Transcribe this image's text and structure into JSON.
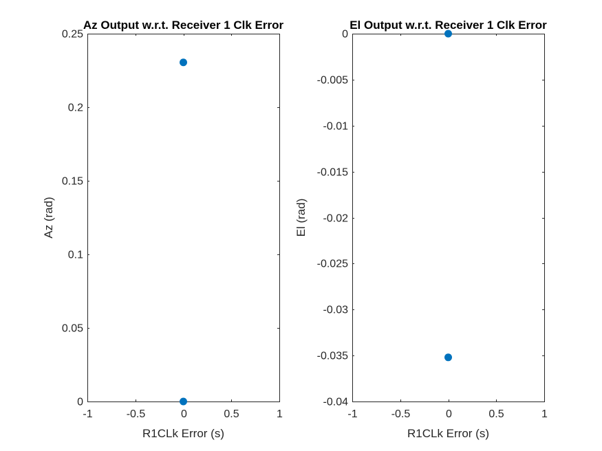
{
  "chart_data": [
    {
      "type": "scatter",
      "title": "Az Output w.r.t. Receiver 1 Clk Error",
      "xlabel": "R1CLk Error (s)",
      "ylabel": "Az (rad)",
      "xlim": [
        -1,
        1
      ],
      "ylim": [
        0,
        0.25
      ],
      "xticks": [
        -1,
        -0.5,
        0,
        0.5,
        1
      ],
      "xtick_labels": [
        "-1",
        "-0.5",
        "0",
        "0.5",
        "1"
      ],
      "yticks": [
        0,
        0.05,
        0.1,
        0.15,
        0.2,
        0.25
      ],
      "ytick_labels": [
        "0",
        "0.05",
        "0.1",
        "0.15",
        "0.2",
        "0.25"
      ],
      "grid": false,
      "marker_color": "#0072BD",
      "points": [
        {
          "x": 0,
          "y": 0.2305
        },
        {
          "x": 0,
          "y": 0
        }
      ]
    },
    {
      "type": "scatter",
      "title": "El Output w.r.t. Receiver 1 Clk Error",
      "xlabel": "R1CLk Error (s)",
      "ylabel": "El (rad)",
      "xlim": [
        -1,
        1
      ],
      "ylim": [
        -0.04,
        0
      ],
      "xticks": [
        -1,
        -0.5,
        0,
        0.5,
        1
      ],
      "xtick_labels": [
        "-1",
        "-0.5",
        "0",
        "0.5",
        "1"
      ],
      "yticks": [
        -0.04,
        -0.035,
        -0.03,
        -0.025,
        -0.02,
        -0.015,
        -0.01,
        -0.005,
        0
      ],
      "ytick_labels": [
        "-0.04",
        "-0.035",
        "-0.03",
        "-0.025",
        "-0.02",
        "-0.015",
        "-0.01",
        "-0.005",
        "0"
      ],
      "grid": false,
      "marker_color": "#0072BD",
      "points": [
        {
          "x": 0,
          "y": 0
        },
        {
          "x": 0,
          "y": -0.0352
        }
      ]
    }
  ]
}
